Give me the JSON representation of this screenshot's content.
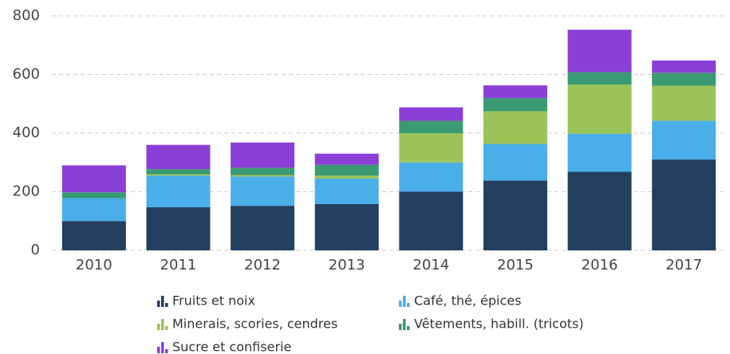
{
  "chart_data": {
    "type": "stacked_bar",
    "categories": [
      "2010",
      "2011",
      "2012",
      "2013",
      "2014",
      "2015",
      "2016",
      "2017"
    ],
    "series": [
      {
        "name": "Fruits et noix",
        "color": "#243f60",
        "values": [
          100,
          147,
          152,
          158,
          200,
          238,
          268,
          310
        ]
      },
      {
        "name": "Café, thé, épices",
        "color": "#4aaee8",
        "values": [
          78,
          108,
          100,
          87,
          100,
          125,
          130,
          132
        ]
      },
      {
        "name": "Minerais, scories, cendres",
        "color": "#9bc35a",
        "values": [
          0,
          5,
          5,
          10,
          100,
          112,
          168,
          120
        ]
      },
      {
        "name": "Vêtements, habill. (tricots)",
        "color": "#3a9a73",
        "values": [
          20,
          17,
          25,
          37,
          42,
          45,
          42,
          44
        ]
      },
      {
        "name": "Sucre et confiserie",
        "color": "#8a3fd6",
        "values": [
          92,
          83,
          86,
          38,
          46,
          43,
          145,
          42
        ]
      }
    ],
    "ylim": [
      0,
      800
    ],
    "yticks": [
      0,
      200,
      400,
      600,
      800
    ],
    "grid": true
  }
}
